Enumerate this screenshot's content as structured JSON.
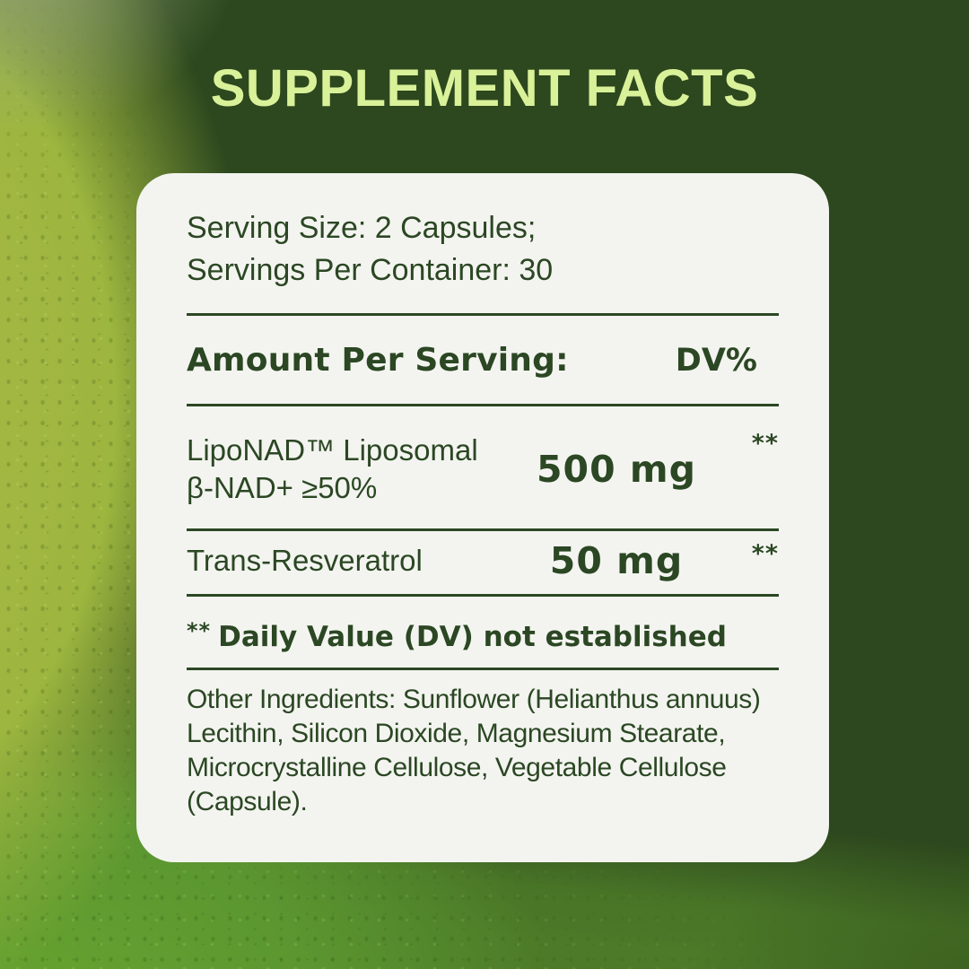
{
  "title": "SUPPLEMENT FACTS",
  "panel": {
    "serving_size": "Serving Size: 2 Capsules;",
    "servings_per_container": "Servings Per Container: 30",
    "header": {
      "amount_label": "Amount Per Serving:",
      "dv_label": "DV%"
    },
    "rows": [
      {
        "name_line1": "LipoNAD™ Liposomal",
        "name_line2": "β-NAD+ ≥50%",
        "amount": "500 mg",
        "dv": "**"
      },
      {
        "name_line1": "Trans-Resveratrol",
        "amount": "50 mg",
        "dv": "**"
      }
    ],
    "footnote": {
      "marker": "**",
      "text": "Daily Value (DV) not established"
    },
    "other_ingredients": "Other Ingredients: Sunflower (Helianthus annuus) Lecithin, Silicon Dioxide, Magnesium Stearate, Microcrystalline Cellulose, Vegetable Cellulose (Capsule)."
  },
  "colors": {
    "title_text": "#d9f199",
    "panel_background": "#f3f4f0",
    "panel_text": "#2b4723",
    "divider": "#2b4723",
    "background_dark_green": "#2d481e",
    "background_lime": "#9db63f",
    "background_bright_green": "#5b9630"
  }
}
